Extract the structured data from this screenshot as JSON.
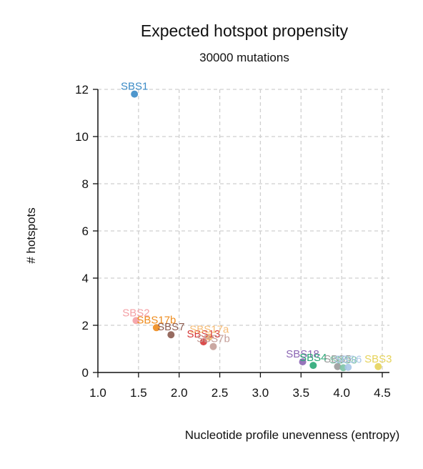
{
  "chart_data": {
    "type": "scatter",
    "title": "Expected hotspot propensity",
    "subtitle": "30000 mutations",
    "xlabel": "Nucleotide profile unevenness (entropy)",
    "ylabel": "# hotspots",
    "xlim": [
      1.0,
      4.6
    ],
    "ylim": [
      0,
      12
    ],
    "xticks": [
      "1.0",
      "1.5",
      "2.0",
      "2.5",
      "3.0",
      "3.5",
      "4.0",
      "4.5"
    ],
    "yticks": [
      "0",
      "2",
      "4",
      "6",
      "8",
      "10",
      "12"
    ],
    "grid": true,
    "points": [
      {
        "label": "SBS1",
        "x": 1.45,
        "y": 11.8,
        "color": "#3b8bc6"
      },
      {
        "label": "SBS2",
        "x": 1.47,
        "y": 2.2,
        "color": "#f4a0a5"
      },
      {
        "label": "SBS17b",
        "x": 1.72,
        "y": 1.9,
        "color": "#ee8b1c"
      },
      {
        "label": "SBS7",
        "x": 1.9,
        "y": 1.6,
        "color": "#8c5b4f"
      },
      {
        "label": "SBS13",
        "x": 2.3,
        "y": 1.3,
        "color": "#d63a3a"
      },
      {
        "label": "SBS17a",
        "x": 2.37,
        "y": 1.5,
        "color": "#f6bb74"
      },
      {
        "label": "SBS7b",
        "x": 2.42,
        "y": 1.1,
        "color": "#c49e98"
      },
      {
        "label": "SBS18",
        "x": 3.52,
        "y": 0.45,
        "color": "#8c66b4"
      },
      {
        "label": "SBS4",
        "x": 3.65,
        "y": 0.3,
        "color": "#2aa877"
      },
      {
        "label": "SBS5",
        "x": 3.95,
        "y": 0.25,
        "color": "#9a9a9a"
      },
      {
        "label": "SBS8",
        "x": 4.02,
        "y": 0.2,
        "color": "#7cc3a6"
      },
      {
        "label": "SBS6",
        "x": 4.08,
        "y": 0.22,
        "color": "#a9c6e8"
      },
      {
        "label": "SBS3",
        "x": 4.45,
        "y": 0.25,
        "color": "#e6d35a"
      }
    ]
  }
}
